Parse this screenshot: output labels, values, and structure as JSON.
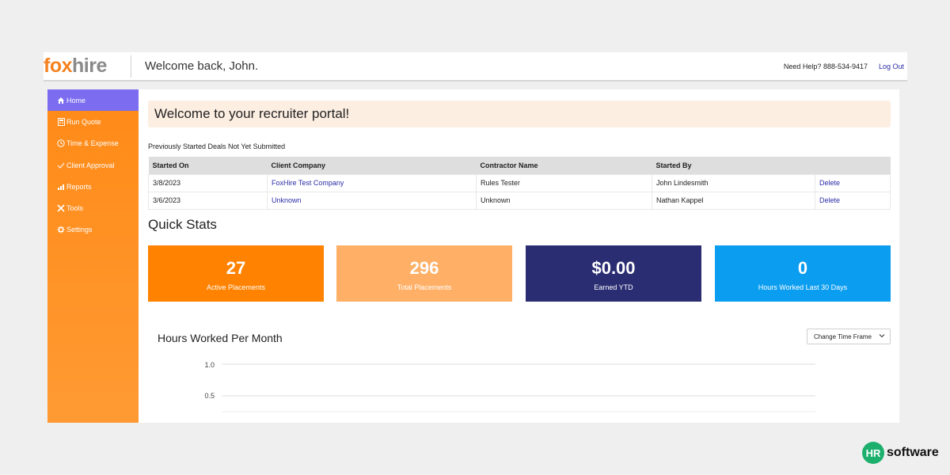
{
  "header": {
    "logo_fox": "fox",
    "logo_hire": "hire",
    "welcome": "Welcome back, John.",
    "help": "Need Help? 888-534-9417",
    "logout": "Log Out"
  },
  "sidebar": {
    "items": [
      {
        "label": "Home",
        "icon": "home-icon",
        "active": true
      },
      {
        "label": "Run Quote",
        "icon": "calculator-icon"
      },
      {
        "label": "Time & Expense",
        "icon": "clock-icon"
      },
      {
        "label": "Client Approval",
        "icon": "check-icon"
      },
      {
        "label": "Reports",
        "icon": "chart-icon"
      },
      {
        "label": "Tools",
        "icon": "tools-icon"
      },
      {
        "label": "Settings",
        "icon": "gear-icon"
      }
    ]
  },
  "banner": "Welcome to your recruiter portal!",
  "deals": {
    "subhead": "Previously Started Deals Not Yet Submitted",
    "columns": [
      "Started On",
      "Client Company",
      "Contractor Name",
      "Started By",
      ""
    ],
    "rows": [
      {
        "started_on": "3/8/2023",
        "client": "FoxHire Test Company",
        "contractor": "Rules Tester",
        "started_by": "John Lindesmith",
        "action": "Delete"
      },
      {
        "started_on": "3/6/2023",
        "client": "Unknown",
        "contractor": "Unknown",
        "started_by": "Nathan Kappel",
        "action": "Delete"
      }
    ]
  },
  "quick_stats": {
    "title": "Quick Stats",
    "cards": [
      {
        "value": "27",
        "label": "Active Placements",
        "color": "#ff8200"
      },
      {
        "value": "296",
        "label": "Total Placements",
        "color": "#ffb066"
      },
      {
        "value": "$0.00",
        "label": "Earned YTD",
        "color": "#2a2d72"
      },
      {
        "value": "0",
        "label": "Hours Worked Last 30 Days",
        "color": "#0b9df0"
      }
    ]
  },
  "chart": {
    "title": "Hours Worked Per Month",
    "time_frame_label": "Change Time Frame"
  },
  "chart_data": {
    "type": "line",
    "title": "Hours Worked Per Month",
    "y_ticks": [
      "1.0",
      "0.5"
    ],
    "ylim": [
      0,
      1.0
    ],
    "grid": true,
    "series": []
  },
  "brand": {
    "mark": "HR",
    "text": "software"
  }
}
